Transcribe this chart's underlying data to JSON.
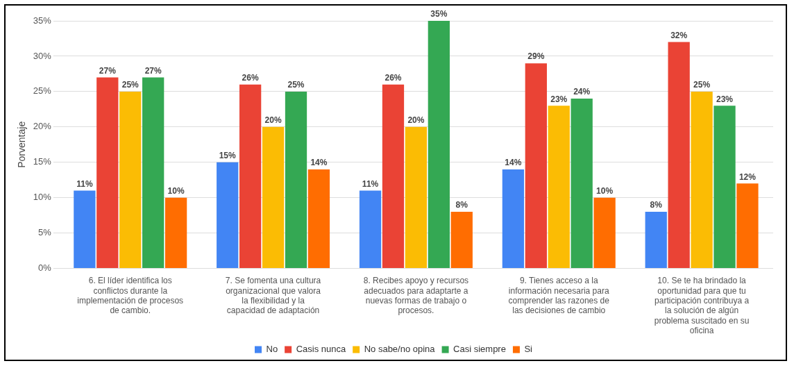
{
  "chart_data": {
    "type": "bar",
    "ylabel": "Porventaje",
    "categories": [
      "6. El líder identifica los conflictos durante la implementación de procesos de cambio.",
      "7. Se fomenta una cultura organizacional que valora la flexibilidad y la capacidad de adaptación",
      "8. Recibes apoyo y recursos adecuados para adaptarte a nuevas formas de trabajo o procesos.",
      "9. Tienes acceso a la información necesaria para comprender las razones de las decisiones de cambio",
      "10. Se te ha brindado la oportunidad para que tu participación contribuya a la solución de algún problema suscitado en su oficina"
    ],
    "series": [
      {
        "name": "No",
        "color": "#4285f4",
        "values": [
          11,
          15,
          11,
          14,
          8
        ],
        "value_labels": [
          "11%",
          "15%",
          "11%",
          "14%",
          "8%"
        ]
      },
      {
        "name": "Casis nunca",
        "color": "#ea4335",
        "values": [
          27,
          26,
          26,
          29,
          32
        ],
        "value_labels": [
          "27%",
          "26%",
          "26%",
          "29%",
          "32%"
        ]
      },
      {
        "name": "No sabe/no opina",
        "color": "#fbbc04",
        "values": [
          25,
          20,
          20,
          23,
          25
        ],
        "value_labels": [
          "25%",
          "20%",
          "20%",
          "23%",
          "25%"
        ]
      },
      {
        "name": "Casi siempre",
        "color": "#34a853",
        "values": [
          27,
          25,
          35,
          24,
          23
        ],
        "value_labels": [
          "27%",
          "25%",
          "35%",
          "24%",
          "23%"
        ]
      },
      {
        "name": "Si",
        "color": "#ff6d01",
        "values": [
          10,
          14,
          8,
          10,
          12
        ],
        "value_labels": [
          "10%",
          "14%",
          "8%",
          "10%",
          "12%"
        ]
      }
    ],
    "ylim": [
      0,
      35
    ],
    "yticks": [
      {
        "value": 0,
        "label": "0%"
      },
      {
        "value": 5,
        "label": "5%"
      },
      {
        "value": 10,
        "label": "10%"
      },
      {
        "value": 15,
        "label": "15%"
      },
      {
        "value": 20,
        "label": "20%"
      },
      {
        "value": 25,
        "label": "25%"
      },
      {
        "value": 30,
        "label": "30%"
      },
      {
        "value": 35,
        "label": "35%"
      }
    ],
    "grid": "y",
    "legend": "bottom"
  }
}
